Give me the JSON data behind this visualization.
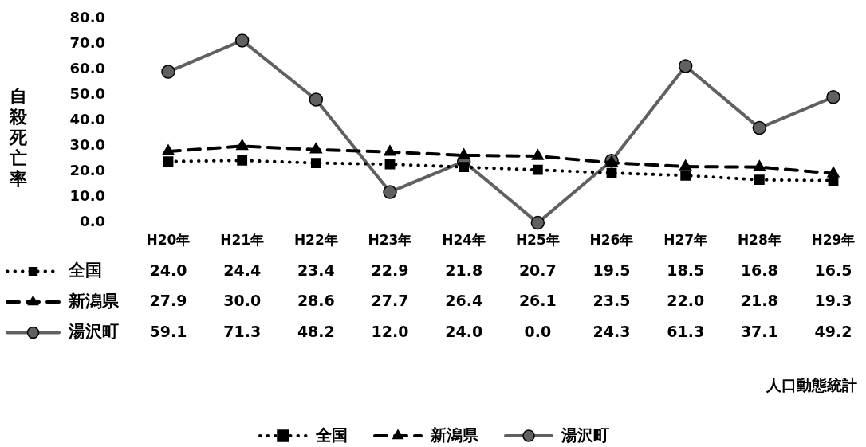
{
  "chart_data": {
    "type": "line",
    "ylabel": "自殺死亡率",
    "categories": [
      "H20年",
      "H21年",
      "H22年",
      "H23年",
      "H24年",
      "H25年",
      "H26年",
      "H27年",
      "H28年",
      "H29年"
    ],
    "ylim": [
      0,
      80
    ],
    "yticks": [
      {
        "value": 0,
        "label": "0.0"
      },
      {
        "value": 10,
        "label": "10.0"
      },
      {
        "value": 20,
        "label": "20.0"
      },
      {
        "value": 30,
        "label": "30.0"
      },
      {
        "value": 40,
        "label": "40.0"
      },
      {
        "value": 50,
        "label": "50.0"
      },
      {
        "value": 60,
        "label": "60.0"
      },
      {
        "value": 70,
        "label": "70.0"
      },
      {
        "value": 80,
        "label": "80.0"
      }
    ],
    "series": [
      {
        "name": "全国",
        "color": "#000000",
        "marker": "square",
        "line_style": "dotted",
        "values": [
          24.0,
          24.4,
          23.4,
          22.9,
          21.8,
          20.7,
          19.5,
          18.5,
          16.8,
          16.5
        ],
        "value_labels": [
          "24.0",
          "24.4",
          "23.4",
          "22.9",
          "21.8",
          "20.7",
          "19.5",
          "18.5",
          "16.8",
          "16.5"
        ]
      },
      {
        "name": "新潟県",
        "color": "#000000",
        "marker": "triangle",
        "line_style": "dashed",
        "values": [
          27.9,
          30.0,
          28.6,
          27.7,
          26.4,
          26.1,
          23.5,
          22.0,
          21.8,
          19.3
        ],
        "value_labels": [
          "27.9",
          "30.0",
          "28.6",
          "27.7",
          "26.4",
          "26.1",
          "23.5",
          "22.0",
          "21.8",
          "19.3"
        ]
      },
      {
        "name": "湯沢町",
        "color": "#606060",
        "marker": "circle",
        "line_style": "solid",
        "values": [
          59.1,
          71.3,
          48.2,
          12.0,
          24.0,
          0.0,
          24.3,
          61.3,
          37.1,
          49.2
        ],
        "value_labels": [
          "59.1",
          "71.3",
          "48.2",
          "12.0",
          "24.0",
          "0.0",
          "24.3",
          "61.3",
          "37.1",
          "49.2"
        ]
      }
    ],
    "grid": false,
    "legend": "bottom",
    "annotations": [
      "人口動態統計"
    ]
  }
}
